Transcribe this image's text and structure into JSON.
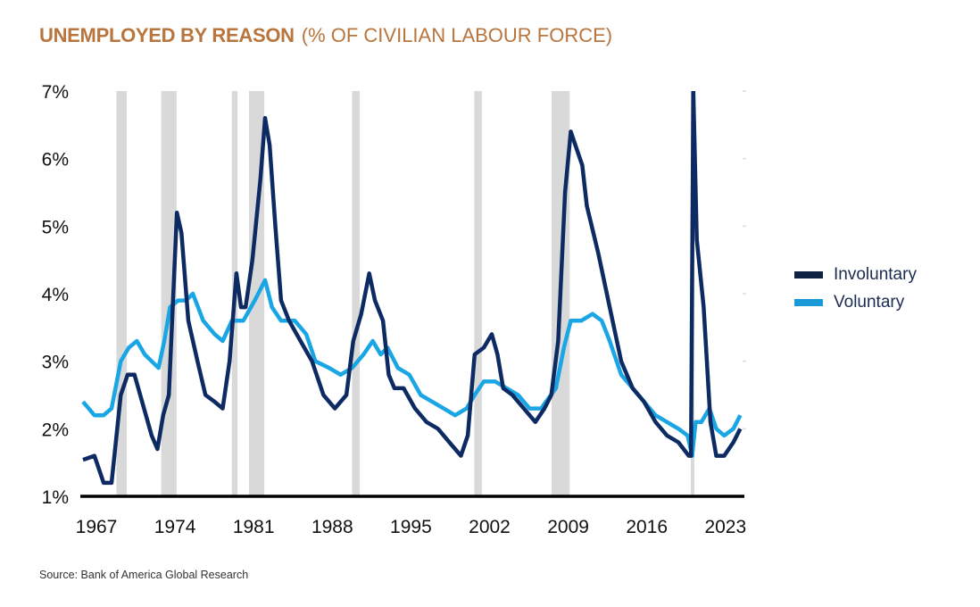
{
  "title": {
    "main": "UNEMPLOYED BY REASON",
    "sub": "(% OF CIVILIAN LABOUR FORCE)"
  },
  "source": "Source: Bank of America Global Research",
  "colors": {
    "title": "#b8753d",
    "involuntary": "#0d2a63",
    "voluntary": "#1aa6e4",
    "recession": "#d9d9d9",
    "axis": "#000000"
  },
  "chart_data": {
    "type": "line",
    "ylim": [
      1,
      7
    ],
    "y_ticks": [
      1,
      2,
      3,
      4,
      5,
      6,
      7
    ],
    "y_tick_labels": [
      "1%",
      "2%",
      "3%",
      "4%",
      "5%",
      "6%",
      "7%"
    ],
    "xlim": [
      1967,
      2024.5
    ],
    "x_ticks": [
      1967,
      1974,
      1981,
      1988,
      1995,
      2002,
      2009,
      2016,
      2023
    ],
    "x_tick_labels": [
      "1967",
      "1974",
      "1981",
      "1988",
      "1995",
      "2002",
      "2009",
      "2016",
      "2023"
    ],
    "legend_position": "right",
    "grid": false,
    "recession_shading": [
      [
        1969.92,
        1970.83
      ],
      [
        1973.83,
        1975.17
      ],
      [
        1980.0,
        1980.5
      ],
      [
        1981.5,
        1982.83
      ],
      [
        1990.5,
        1991.17
      ],
      [
        2001.17,
        2001.83
      ],
      [
        2007.92,
        2009.5
      ],
      [
        2020.08,
        2020.33
      ]
    ],
    "series": [
      {
        "name": "Involuntary",
        "points": [
          [
            1967,
            1.54
          ],
          [
            1968,
            1.6
          ],
          [
            1968.8,
            1.2
          ],
          [
            1969.5,
            1.2
          ],
          [
            1970.3,
            2.5
          ],
          [
            1970.9,
            2.8
          ],
          [
            1971.5,
            2.8
          ],
          [
            1972,
            2.5
          ],
          [
            1973,
            1.9
          ],
          [
            1973.5,
            1.7
          ],
          [
            1974,
            2.2
          ],
          [
            1974.5,
            2.5
          ],
          [
            1975.2,
            5.2
          ],
          [
            1975.6,
            4.9
          ],
          [
            1976.2,
            3.6
          ],
          [
            1977,
            3.0
          ],
          [
            1977.7,
            2.5
          ],
          [
            1978.5,
            2.4
          ],
          [
            1979.2,
            2.3
          ],
          [
            1979.8,
            3.0
          ],
          [
            1980.4,
            4.3
          ],
          [
            1980.8,
            3.8
          ],
          [
            1981.2,
            3.8
          ],
          [
            1981.8,
            4.5
          ],
          [
            1982.5,
            5.7
          ],
          [
            1982.9,
            6.6
          ],
          [
            1983.3,
            6.2
          ],
          [
            1983.8,
            5.0
          ],
          [
            1984.3,
            3.9
          ],
          [
            1985,
            3.6
          ],
          [
            1986,
            3.3
          ],
          [
            1987,
            3.0
          ],
          [
            1988,
            2.5
          ],
          [
            1989,
            2.3
          ],
          [
            1990,
            2.5
          ],
          [
            1990.6,
            3.3
          ],
          [
            1991.3,
            3.7
          ],
          [
            1992,
            4.3
          ],
          [
            1992.5,
            3.9
          ],
          [
            1993.2,
            3.6
          ],
          [
            1993.7,
            2.8
          ],
          [
            1994.2,
            2.6
          ],
          [
            1995,
            2.6
          ],
          [
            1996,
            2.3
          ],
          [
            1997,
            2.1
          ],
          [
            1998,
            2.0
          ],
          [
            1999,
            1.8
          ],
          [
            2000,
            1.6
          ],
          [
            2000.6,
            1.9
          ],
          [
            2001.2,
            3.1
          ],
          [
            2002,
            3.2
          ],
          [
            2002.7,
            3.4
          ],
          [
            2003.2,
            3.1
          ],
          [
            2003.7,
            2.6
          ],
          [
            2004.5,
            2.5
          ],
          [
            2005.5,
            2.3
          ],
          [
            2006.5,
            2.1
          ],
          [
            2007.3,
            2.3
          ],
          [
            2007.9,
            2.5
          ],
          [
            2008.5,
            3.3
          ],
          [
            2009.1,
            5.5
          ],
          [
            2009.6,
            6.4
          ],
          [
            2010.2,
            6.1
          ],
          [
            2010.6,
            5.9
          ],
          [
            2011,
            5.3
          ],
          [
            2012,
            4.6
          ],
          [
            2013,
            3.8
          ],
          [
            2014,
            3.0
          ],
          [
            2015,
            2.6
          ],
          [
            2016,
            2.4
          ],
          [
            2017,
            2.1
          ],
          [
            2018,
            1.9
          ],
          [
            2019,
            1.8
          ],
          [
            2019.9,
            1.6
          ],
          [
            2020.1,
            1.6
          ],
          [
            2020.3,
            7.0
          ],
          [
            2020.6,
            4.8
          ],
          [
            2021.2,
            3.8
          ],
          [
            2021.8,
            2.1
          ],
          [
            2022.3,
            1.6
          ],
          [
            2023,
            1.6
          ],
          [
            2023.8,
            1.8
          ],
          [
            2024.4,
            2.0
          ]
        ]
      },
      {
        "name": "Voluntary",
        "points": [
          [
            1967,
            2.4
          ],
          [
            1968,
            2.2
          ],
          [
            1968.8,
            2.2
          ],
          [
            1969.5,
            2.3
          ],
          [
            1970.3,
            3.0
          ],
          [
            1971,
            3.2
          ],
          [
            1971.7,
            3.3
          ],
          [
            1972.4,
            3.1
          ],
          [
            1973,
            3.0
          ],
          [
            1973.6,
            2.9
          ],
          [
            1974.1,
            3.3
          ],
          [
            1974.6,
            3.8
          ],
          [
            1975.3,
            3.9
          ],
          [
            1976,
            3.9
          ],
          [
            1976.6,
            4.0
          ],
          [
            1977.5,
            3.6
          ],
          [
            1978.5,
            3.4
          ],
          [
            1979.2,
            3.3
          ],
          [
            1980,
            3.6
          ],
          [
            1981,
            3.6
          ],
          [
            1982,
            3.9
          ],
          [
            1982.9,
            4.2
          ],
          [
            1983.5,
            3.8
          ],
          [
            1984.3,
            3.6
          ],
          [
            1985.5,
            3.6
          ],
          [
            1986.5,
            3.4
          ],
          [
            1987.3,
            3.0
          ],
          [
            1988.5,
            2.9
          ],
          [
            1989.5,
            2.8
          ],
          [
            1990.5,
            2.9
          ],
          [
            1991.5,
            3.1
          ],
          [
            1992.3,
            3.3
          ],
          [
            1993,
            3.1
          ],
          [
            1993.6,
            3.2
          ],
          [
            1994.5,
            2.9
          ],
          [
            1995.5,
            2.8
          ],
          [
            1996.5,
            2.5
          ],
          [
            1997.5,
            2.4
          ],
          [
            1998.5,
            2.3
          ],
          [
            1999.5,
            2.2
          ],
          [
            2000.5,
            2.3
          ],
          [
            2001.2,
            2.5
          ],
          [
            2002,
            2.7
          ],
          [
            2003,
            2.7
          ],
          [
            2004,
            2.6
          ],
          [
            2005,
            2.5
          ],
          [
            2006,
            2.3
          ],
          [
            2007,
            2.3
          ],
          [
            2008.3,
            2.6
          ],
          [
            2009,
            3.2
          ],
          [
            2009.6,
            3.6
          ],
          [
            2010.5,
            3.6
          ],
          [
            2011.5,
            3.7
          ],
          [
            2012.3,
            3.6
          ],
          [
            2013,
            3.3
          ],
          [
            2014,
            2.8
          ],
          [
            2015,
            2.6
          ],
          [
            2016,
            2.4
          ],
          [
            2017,
            2.2
          ],
          [
            2018,
            2.1
          ],
          [
            2019,
            2.0
          ],
          [
            2019.8,
            1.9
          ],
          [
            2020.2,
            1.6
          ],
          [
            2020.5,
            2.1
          ],
          [
            2021,
            2.1
          ],
          [
            2021.7,
            2.3
          ],
          [
            2022.3,
            2.0
          ],
          [
            2023,
            1.9
          ],
          [
            2023.8,
            2.0
          ],
          [
            2024.4,
            2.2
          ]
        ]
      }
    ]
  }
}
